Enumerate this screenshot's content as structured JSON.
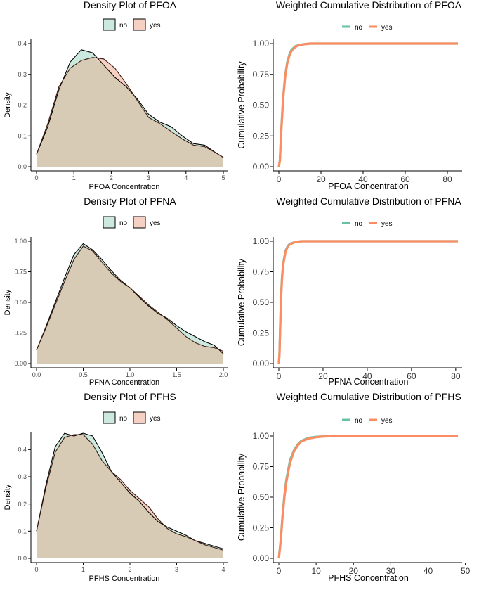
{
  "colors": {
    "no": "#66c2a5",
    "yes": "#fc8d62",
    "no_fill": "#cce9df",
    "yes_fill": "#f6d0c2",
    "overlap_fill": "#d8cbb5",
    "axis": "#000000",
    "tick_text": "#4d4d4d"
  },
  "chart_data": [
    {
      "type": "area",
      "title": "Density Plot of PFOA",
      "xlabel": "PFOA Concentration",
      "ylabel": "Density",
      "legend_position": "top",
      "xlim": [
        0,
        5
      ],
      "ylim": [
        0,
        0.4
      ],
      "x_ticks": [
        0,
        1,
        2,
        3,
        4,
        5
      ],
      "y_ticks": [
        0.0,
        0.1,
        0.2,
        0.3,
        0.4
      ],
      "x_tick_labels": [
        "0",
        "1",
        "2",
        "3",
        "4",
        "5"
      ],
      "y_tick_labels": [
        "0.0",
        "0.1",
        "0.2",
        "0.3",
        "0.4"
      ],
      "series": [
        {
          "name": "no",
          "x": [
            0,
            0.3,
            0.6,
            0.9,
            1.2,
            1.5,
            1.8,
            2.1,
            2.4,
            2.7,
            3.0,
            3.3,
            3.6,
            3.9,
            4.2,
            4.5,
            4.8,
            5.0
          ],
          "values": [
            0.04,
            0.13,
            0.25,
            0.34,
            0.38,
            0.37,
            0.33,
            0.29,
            0.26,
            0.22,
            0.17,
            0.145,
            0.13,
            0.1,
            0.075,
            0.07,
            0.045,
            0.03
          ]
        },
        {
          "name": "yes",
          "x": [
            0,
            0.3,
            0.6,
            0.9,
            1.2,
            1.5,
            1.8,
            2.1,
            2.4,
            2.7,
            3.0,
            3.3,
            3.6,
            3.9,
            4.2,
            4.5,
            4.8,
            5.0
          ],
          "values": [
            0.04,
            0.14,
            0.26,
            0.32,
            0.345,
            0.355,
            0.35,
            0.32,
            0.27,
            0.215,
            0.16,
            0.14,
            0.115,
            0.09,
            0.07,
            0.065,
            0.045,
            0.03
          ]
        }
      ]
    },
    {
      "type": "line",
      "title": "Weighted Cumulative Distribution of PFOA",
      "xlabel": "PFOA Concentration",
      "ylabel": "Cumulative Probability",
      "legend_position": "top",
      "xlim": [
        0,
        85
      ],
      "ylim": [
        0,
        1
      ],
      "x_ticks": [
        0,
        20,
        40,
        60,
        80
      ],
      "y_ticks": [
        0,
        0.25,
        0.5,
        0.75,
        1.0
      ],
      "x_tick_labels": [
        "0",
        "20",
        "40",
        "60",
        "80"
      ],
      "y_tick_labels": [
        "0.00",
        "0.25",
        "0.50",
        "0.75",
        "1.00"
      ],
      "series": [
        {
          "name": "no",
          "x": [
            0,
            0.5,
            1,
            2,
            3,
            4,
            5,
            6,
            8,
            10,
            12,
            15,
            20,
            30,
            50,
            70,
            85
          ],
          "values": [
            0,
            0.05,
            0.25,
            0.55,
            0.74,
            0.85,
            0.91,
            0.95,
            0.98,
            0.99,
            0.995,
            1,
            1,
            1,
            1,
            1,
            1
          ]
        },
        {
          "name": "yes",
          "x": [
            0,
            0.5,
            1,
            2,
            3,
            4,
            5,
            6,
            8,
            10,
            12,
            15,
            20,
            30,
            50,
            70,
            85
          ],
          "values": [
            0,
            0.05,
            0.24,
            0.54,
            0.73,
            0.84,
            0.9,
            0.94,
            0.975,
            0.99,
            0.995,
            1,
            1,
            1,
            1,
            1,
            1
          ]
        }
      ]
    },
    {
      "type": "area",
      "title": "Density Plot of PFNA",
      "xlabel": "PFNA Concentration",
      "ylabel": "Density",
      "legend_position": "top",
      "xlim": [
        0,
        2
      ],
      "ylim": [
        0,
        1
      ],
      "x_ticks": [
        0,
        0.5,
        1.0,
        1.5,
        2.0
      ],
      "y_ticks": [
        0,
        0.25,
        0.5,
        0.75,
        1.0
      ],
      "x_tick_labels": [
        "0.0",
        "0.5",
        "1.0",
        "1.5",
        "2.0"
      ],
      "y_tick_labels": [
        "0.00",
        "0.25",
        "0.50",
        "0.75",
        "1.00"
      ],
      "series": [
        {
          "name": "no",
          "x": [
            0,
            0.1,
            0.2,
            0.3,
            0.4,
            0.5,
            0.6,
            0.7,
            0.8,
            0.9,
            1.0,
            1.1,
            1.2,
            1.3,
            1.4,
            1.5,
            1.6,
            1.7,
            1.8,
            1.9,
            2.0
          ],
          "values": [
            0.11,
            0.3,
            0.5,
            0.7,
            0.89,
            0.98,
            0.93,
            0.85,
            0.76,
            0.68,
            0.62,
            0.54,
            0.47,
            0.41,
            0.37,
            0.31,
            0.26,
            0.22,
            0.18,
            0.15,
            0.08
          ]
        },
        {
          "name": "yes",
          "x": [
            0,
            0.1,
            0.2,
            0.3,
            0.4,
            0.5,
            0.6,
            0.7,
            0.8,
            0.9,
            1.0,
            1.1,
            1.2,
            1.3,
            1.4,
            1.5,
            1.6,
            1.7,
            1.8,
            1.9,
            2.0
          ],
          "values": [
            0.11,
            0.29,
            0.48,
            0.67,
            0.85,
            0.96,
            0.92,
            0.83,
            0.74,
            0.67,
            0.62,
            0.55,
            0.48,
            0.42,
            0.36,
            0.29,
            0.22,
            0.17,
            0.14,
            0.13,
            0.1
          ]
        }
      ]
    },
    {
      "type": "line",
      "title": "Weighted Cumulative Distribution of PFNA",
      "xlabel": "PFNA Concentration",
      "ylabel": "Cumulative Probability",
      "legend_position": "top",
      "xlim": [
        0,
        81
      ],
      "ylim": [
        0,
        1
      ],
      "x_ticks": [
        0,
        20,
        40,
        60,
        80
      ],
      "y_ticks": [
        0,
        0.25,
        0.5,
        0.75,
        1.0
      ],
      "x_tick_labels": [
        "0",
        "20",
        "40",
        "60",
        "80"
      ],
      "y_tick_labels": [
        "0.00",
        "0.25",
        "0.50",
        "0.75",
        "1.00"
      ],
      "series": [
        {
          "name": "no",
          "x": [
            0,
            0.3,
            0.6,
            1,
            1.5,
            2,
            3,
            4,
            5,
            7,
            10,
            15,
            20,
            40,
            60,
            81
          ],
          "values": [
            0,
            0.08,
            0.3,
            0.55,
            0.72,
            0.82,
            0.92,
            0.96,
            0.98,
            0.99,
            1,
            1,
            1,
            1,
            1,
            1
          ]
        },
        {
          "name": "yes",
          "x": [
            0,
            0.3,
            0.6,
            1,
            1.5,
            2,
            3,
            4,
            5,
            7,
            10,
            15,
            20,
            40,
            60,
            81
          ],
          "values": [
            0,
            0.07,
            0.28,
            0.53,
            0.71,
            0.81,
            0.91,
            0.955,
            0.975,
            0.99,
            1,
            1,
            1,
            1,
            1,
            1
          ]
        }
      ]
    },
    {
      "type": "area",
      "title": "Density Plot of PFHS",
      "xlabel": "PFHS Concentration",
      "ylabel": "Density",
      "legend_position": "top",
      "xlim": [
        0,
        4
      ],
      "ylim": [
        0,
        0.45
      ],
      "x_ticks": [
        0,
        1,
        2,
        3,
        4
      ],
      "y_ticks": [
        0.0,
        0.1,
        0.2,
        0.3,
        0.4
      ],
      "x_tick_labels": [
        "0",
        "1",
        "2",
        "3",
        "4"
      ],
      "y_tick_labels": [
        "0.0",
        "0.1",
        "0.2",
        "0.3",
        "0.4"
      ],
      "series": [
        {
          "name": "no",
          "x": [
            0,
            0.2,
            0.4,
            0.6,
            0.8,
            1.0,
            1.2,
            1.4,
            1.6,
            1.8,
            2.0,
            2.2,
            2.4,
            2.6,
            2.8,
            3.0,
            3.2,
            3.4,
            3.6,
            3.8,
            4.0
          ],
          "values": [
            0.1,
            0.27,
            0.41,
            0.46,
            0.45,
            0.46,
            0.45,
            0.39,
            0.32,
            0.28,
            0.24,
            0.21,
            0.17,
            0.135,
            0.115,
            0.1,
            0.085,
            0.065,
            0.055,
            0.045,
            0.035
          ]
        },
        {
          "name": "yes",
          "x": [
            0,
            0.2,
            0.4,
            0.6,
            0.8,
            1.0,
            1.2,
            1.4,
            1.6,
            1.8,
            2.0,
            2.2,
            2.4,
            2.6,
            2.8,
            3.0,
            3.2,
            3.4,
            3.6,
            3.8,
            4.0
          ],
          "values": [
            0.1,
            0.26,
            0.39,
            0.445,
            0.455,
            0.455,
            0.42,
            0.36,
            0.32,
            0.29,
            0.25,
            0.22,
            0.19,
            0.145,
            0.11,
            0.09,
            0.08,
            0.065,
            0.05,
            0.04,
            0.03
          ]
        }
      ]
    },
    {
      "type": "line",
      "title": "Weighted Cumulative Distribution of PFHS",
      "xlabel": "PFHS Concentration",
      "ylabel": "Cumulative Probability",
      "legend_position": "top",
      "xlim": [
        0,
        48
      ],
      "ylim": [
        0,
        1
      ],
      "x_ticks": [
        0,
        10,
        20,
        30,
        40,
        50
      ],
      "y_ticks": [
        0,
        0.25,
        0.5,
        0.75,
        1.0
      ],
      "x_tick_labels": [
        "0",
        "10",
        "20",
        "30",
        "40",
        "50"
      ],
      "y_tick_labels": [
        "0.00",
        "0.25",
        "0.50",
        "0.75",
        "1.00"
      ],
      "series": [
        {
          "name": "no",
          "x": [
            0,
            0.5,
            1,
            1.5,
            2,
            3,
            4,
            5,
            6,
            8,
            10,
            12,
            15,
            20,
            30,
            40,
            48
          ],
          "values": [
            0,
            0.15,
            0.35,
            0.52,
            0.64,
            0.8,
            0.88,
            0.93,
            0.96,
            0.985,
            0.993,
            0.997,
            1,
            1,
            1,
            1,
            1
          ]
        },
        {
          "name": "yes",
          "x": [
            0,
            0.5,
            1,
            1.5,
            2,
            3,
            4,
            5,
            6,
            8,
            10,
            12,
            15,
            20,
            30,
            40,
            48
          ],
          "values": [
            0,
            0.14,
            0.34,
            0.5,
            0.62,
            0.78,
            0.87,
            0.92,
            0.955,
            0.98,
            0.99,
            0.996,
            1,
            1,
            1,
            1,
            1
          ]
        }
      ]
    }
  ]
}
